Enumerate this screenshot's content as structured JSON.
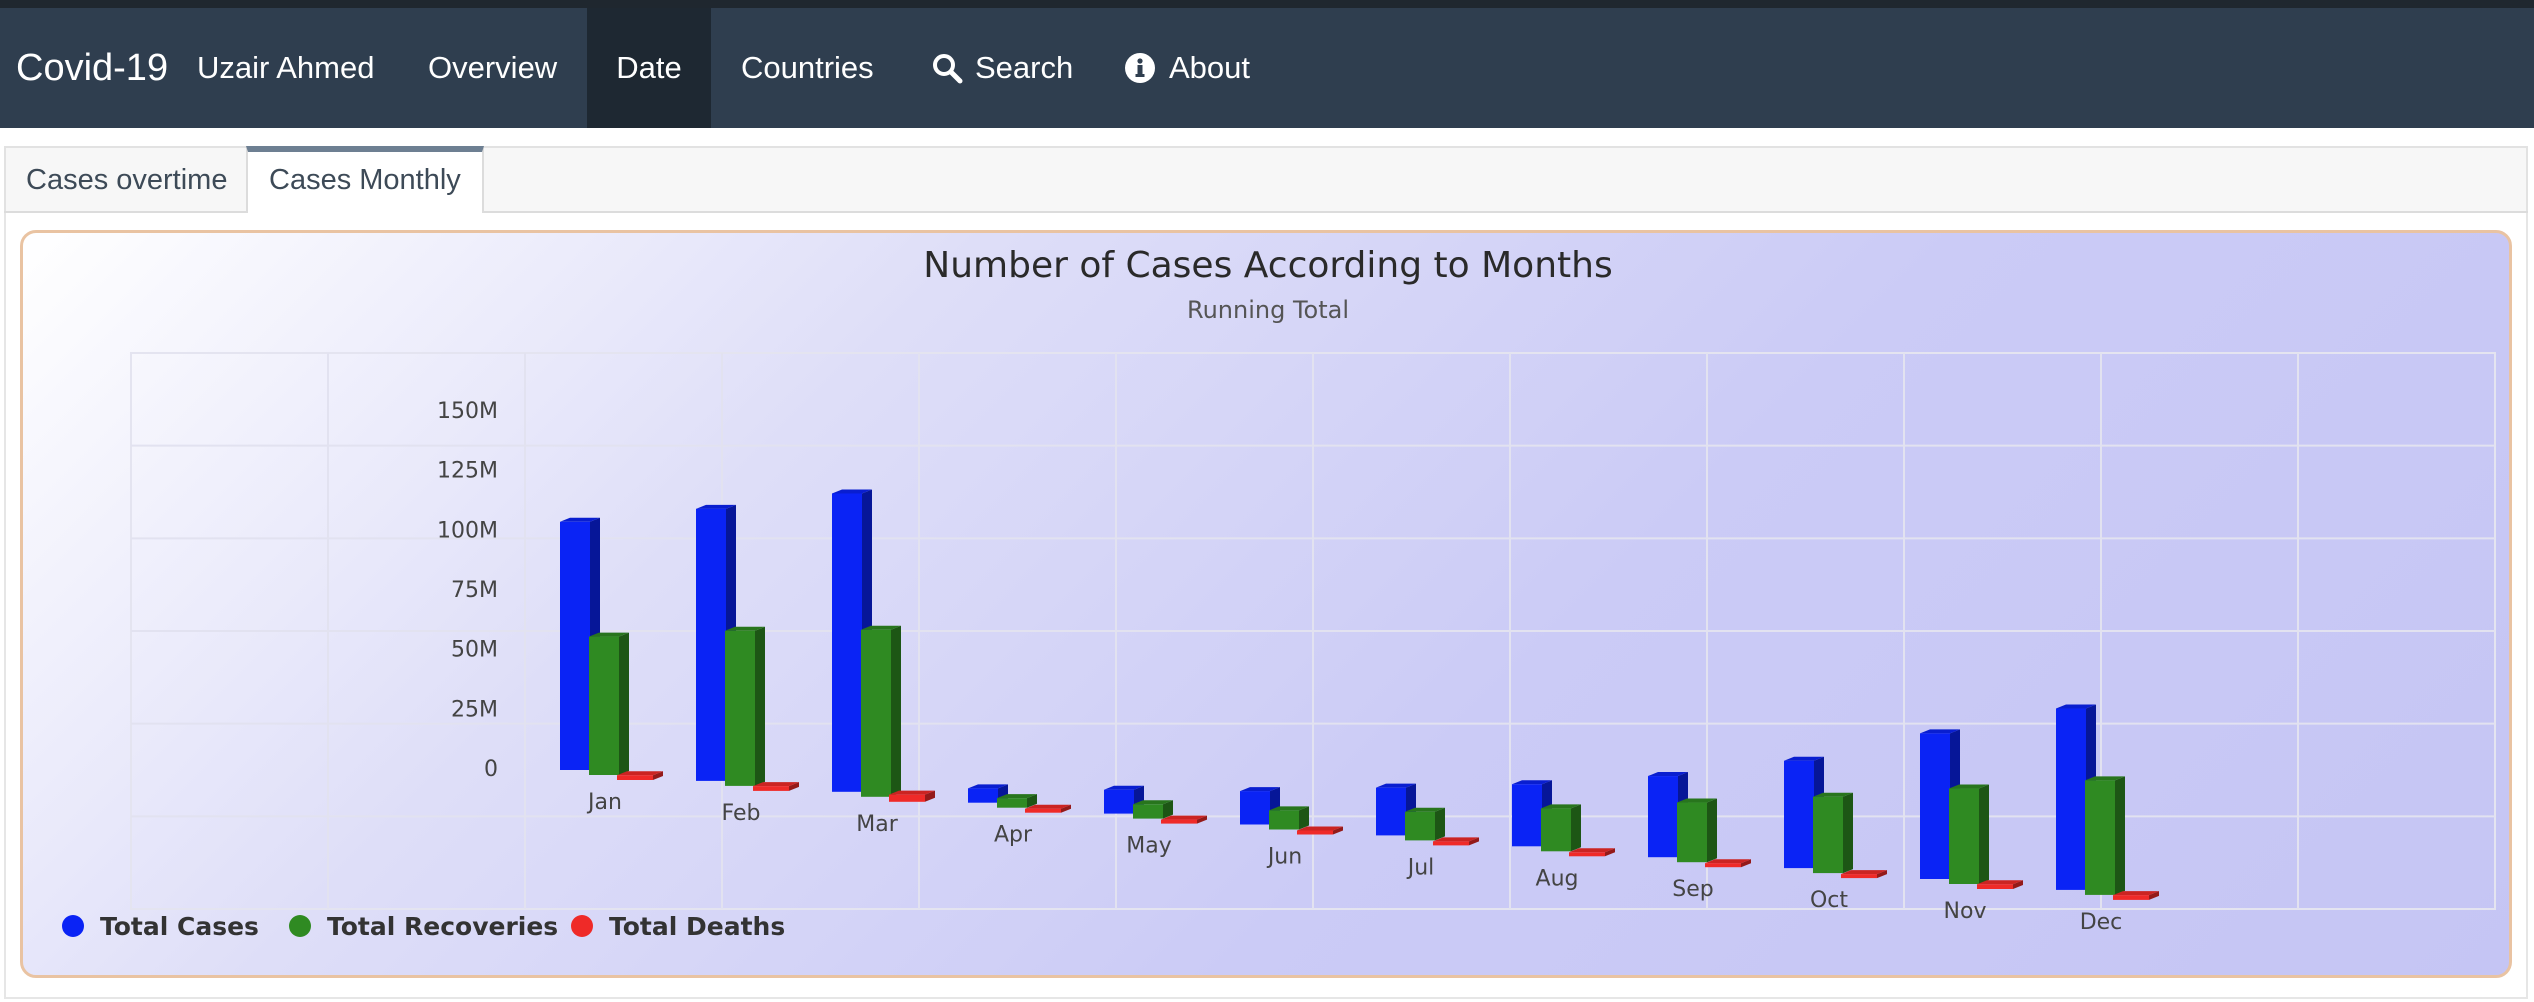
{
  "navbar": {
    "brand": "Covid-19",
    "items": [
      {
        "label": "Uzair Ahmed"
      },
      {
        "label": "Overview"
      },
      {
        "label": "Date"
      },
      {
        "label": "Countries"
      },
      {
        "label": "Search"
      },
      {
        "label": "About"
      }
    ],
    "active_item": "Date"
  },
  "tabs": [
    {
      "label": "Cases overtime"
    },
    {
      "label": "Cases Monthly"
    }
  ],
  "active_tab": "Cases Monthly",
  "colors": {
    "navbar_bg": "#2f3e4f",
    "cases": "#0a23f5",
    "recoveries": "#2f8a22",
    "deaths": "#ef2a28",
    "chart_border": "#e9c3a2"
  },
  "chart_data": {
    "type": "bar",
    "title": "Number of Cases According to Months",
    "subtitle": "Running Total",
    "categories": [
      "Jan",
      "Feb",
      "Mar",
      "Apr",
      "May",
      "Jun",
      "Jul",
      "Aug",
      "Sep",
      "Oct",
      "Nov",
      "Dec"
    ],
    "series": [
      {
        "name": "Total Cases",
        "color": "#0a23f5",
        "values": [
          104,
          114,
          125,
          6,
          10,
          14,
          20,
          26,
          34,
          45,
          61,
          76
        ]
      },
      {
        "name": "Total Recoveries",
        "color": "#2f8a22",
        "values": [
          58,
          65,
          70,
          4,
          6,
          8,
          12,
          18,
          25,
          32,
          40,
          48
        ]
      },
      {
        "name": "Total Deaths",
        "color": "#ef2a28",
        "values": [
          2,
          2,
          3,
          0.5,
          0.8,
          1,
          1,
          1,
          1,
          1,
          2,
          2
        ]
      }
    ],
    "ytick_labels": [
      "0",
      "25M",
      "50M",
      "75M",
      "100M",
      "125M",
      "150M"
    ],
    "ylim": [
      0,
      150
    ],
    "grid": true,
    "legend_position": "bottom-left",
    "three_d": true
  }
}
